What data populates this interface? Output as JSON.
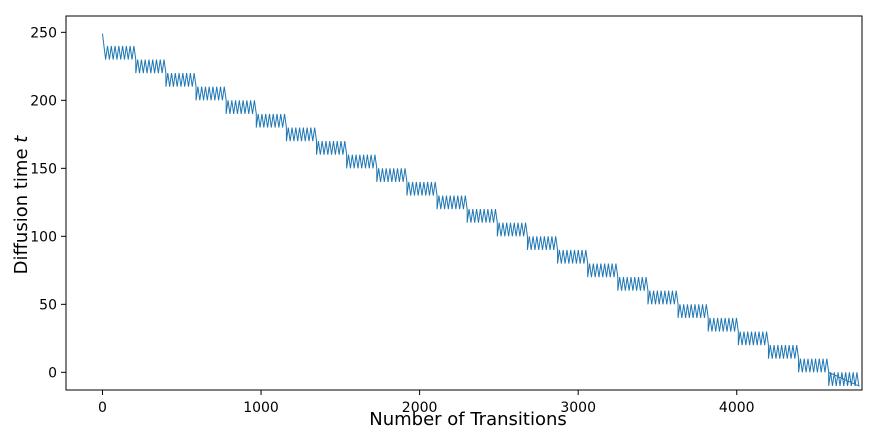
{
  "chart_data": {
    "type": "line",
    "xlabel": "Number of Transitions",
    "ylabel_text": "Diffusion time ",
    "ylabel_var": "t",
    "xlim": [
      -230,
      4790
    ],
    "ylim": [
      -13,
      262
    ],
    "xticks": [
      0,
      1000,
      2000,
      3000,
      4000
    ],
    "xtick_labels": [
      "0",
      "1000",
      "2000",
      "3000",
      "4000"
    ],
    "yticks": [
      0,
      50,
      100,
      150,
      200,
      250
    ],
    "ytick_labels": [
      "0",
      "50",
      "100",
      "150",
      "200",
      "250"
    ],
    "grid": false,
    "series": [
      {
        "color": "#1f77b4",
        "initial": [
          [
            0,
            249
          ],
          [
            20,
            230
          ]
        ],
        "steps": 25,
        "step_length": 190,
        "step_size": 10,
        "first_step_base": 230,
        "oscillations_per_step": 8,
        "oscillation_amplitude": 10,
        "final_x": 4580,
        "final_y": 0
      }
    ]
  }
}
